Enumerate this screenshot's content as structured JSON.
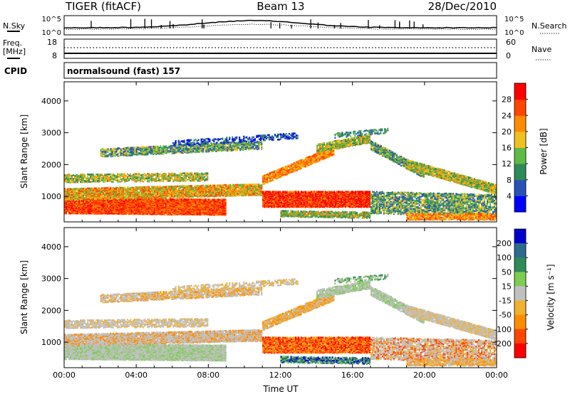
{
  "header": {
    "radar": "TIGER (fitACF)",
    "beam": "Beam 13",
    "date": "28/Dec/2010"
  },
  "top_panel": {
    "left_label": "N.Sky",
    "right_label": "N.Search",
    "left_ticks": [
      "10^5",
      "10^0"
    ],
    "right_ticks": [
      "10^5",
      "10^0"
    ]
  },
  "freq_panel": {
    "left_label_line1": "Freq.",
    "left_label_line2": "[MHz]",
    "right_label": "Nave",
    "left_ticks": [
      "18",
      "8"
    ],
    "right_ticks": [
      "60",
      "0"
    ]
  },
  "cpid_panel": {
    "label": "CPID",
    "text": "normalsound (fast) 157"
  },
  "chart_data": [
    {
      "type": "heatmap",
      "name": "power",
      "ylabel": "Slant Range [km]",
      "xlabel": "",
      "x_ticks": [
        "00:00",
        "04:00",
        "08:00",
        "12:00",
        "16:00",
        "20:00",
        "00:00"
      ],
      "y_ticks": [
        1000,
        2000,
        3000,
        4000
      ],
      "ylim": [
        200,
        4600
      ],
      "colorbar_label": "Power [dB]",
      "colorbar_ticks": [
        4,
        8,
        12,
        16,
        20,
        24,
        28
      ],
      "colorbar_colors": [
        "#0000ff",
        "#2852b8",
        "#2e8b57",
        "#5fba46",
        "#f0c020",
        "#ff8c00",
        "#ff4500",
        "#ff0000"
      ]
    },
    {
      "type": "heatmap",
      "name": "velocity",
      "ylabel": "Slant Range [km]",
      "xlabel": "Time UT",
      "x_ticks": [
        "00:00",
        "04:00",
        "08:00",
        "12:00",
        "16:00",
        "20:00",
        "00:00"
      ],
      "y_ticks": [
        1000,
        2000,
        3000,
        4000
      ],
      "ylim": [
        200,
        4600
      ],
      "colorbar_label": "Velocity [m s⁻¹]",
      "colorbar_ticks": [
        200,
        100,
        50,
        15,
        -15,
        -50,
        -100,
        -200
      ],
      "colorbar_colors": [
        "#0000cd",
        "#2e6b8e",
        "#2e8b57",
        "#7ccd52",
        "#c0c0c0",
        "#f0b030",
        "#ff8c00",
        "#ff4500",
        "#ff0000"
      ]
    }
  ]
}
